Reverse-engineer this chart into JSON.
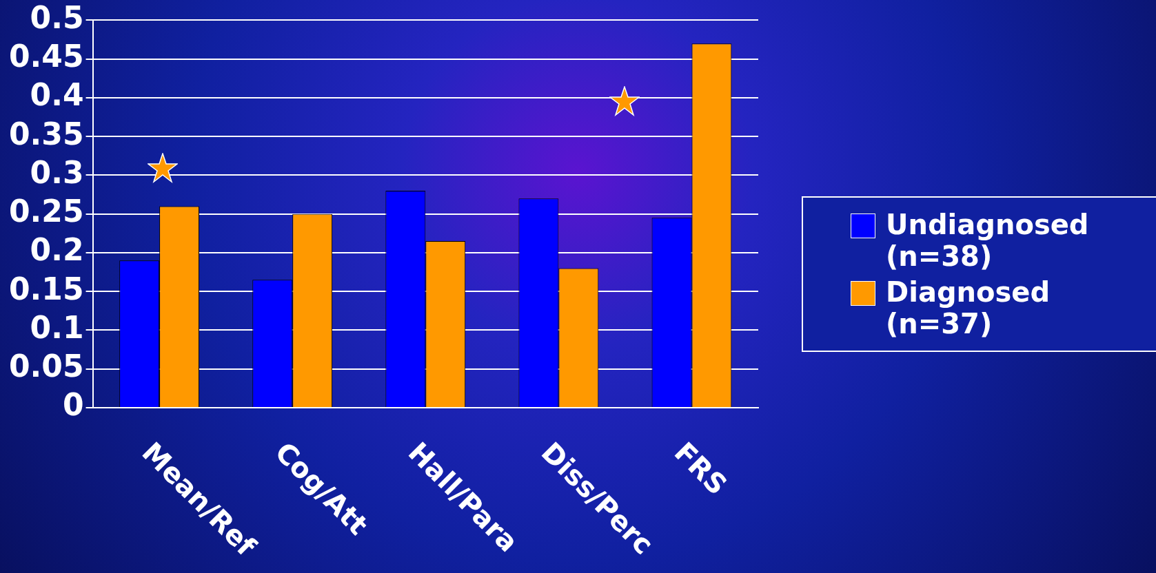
{
  "chart_data": {
    "type": "bar",
    "categories": [
      "Mean/Ref",
      "Cog/Att",
      "Hall/Para",
      "Diss/Perc",
      "FRS"
    ],
    "series": [
      {
        "name": "Undiagnosed (n=38)",
        "color": "#0000ff",
        "values": [
          0.19,
          0.165,
          0.28,
          0.27,
          0.245
        ]
      },
      {
        "name": "Diagnosed (n=37)",
        "color": "#ff9900",
        "values": [
          0.26,
          0.25,
          0.215,
          0.18,
          0.47
        ]
      }
    ],
    "ylim": [
      0,
      0.5
    ],
    "yticks": [
      0,
      0.05,
      0.1,
      0.15,
      0.2,
      0.25,
      0.3,
      0.35,
      0.4,
      0.45,
      0.5
    ],
    "grid": "y",
    "legend": "right"
  }
}
